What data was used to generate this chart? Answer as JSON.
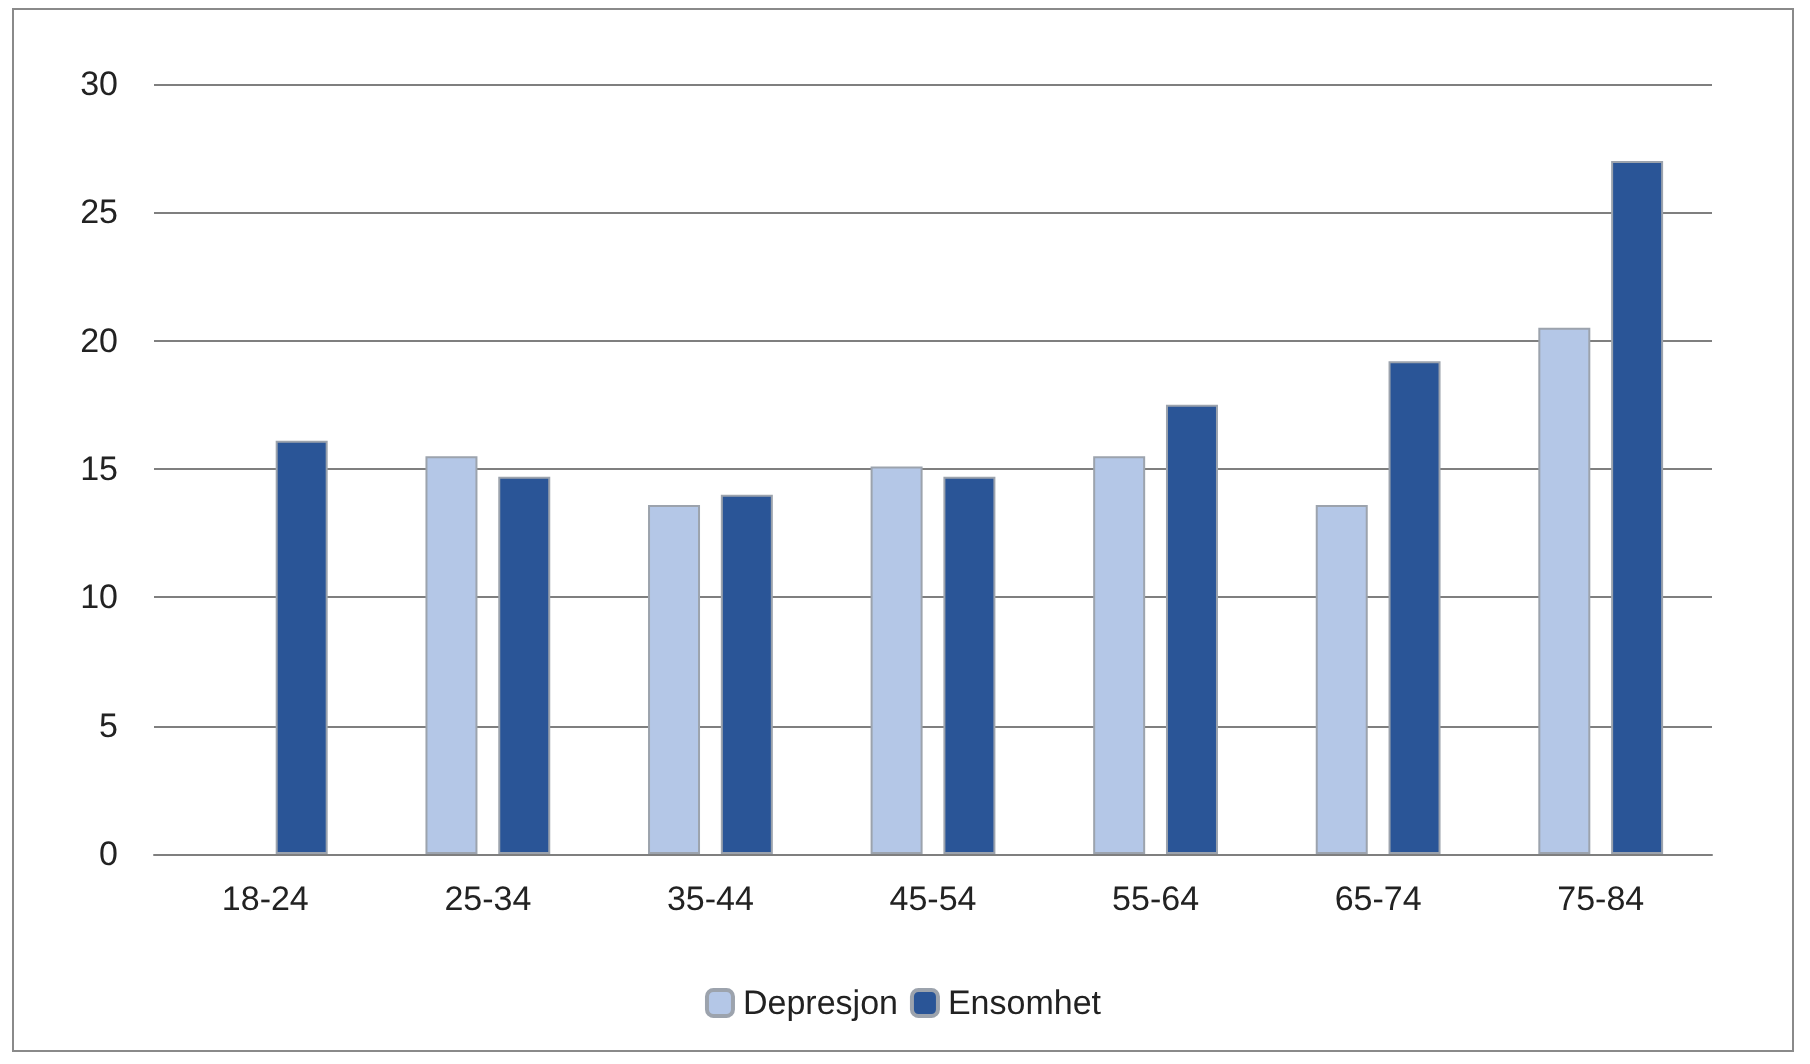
{
  "chart_data": {
    "type": "bar",
    "categories": [
      "18-24",
      "25-34",
      "35-44",
      "45-54",
      "55-64",
      "65-74",
      "75-84"
    ],
    "series": [
      {
        "name": "Depresjon",
        "color": "#b4c7e7",
        "values": [
          null,
          15.5,
          13.6,
          15.1,
          15.5,
          13.6,
          20.5
        ]
      },
      {
        "name": "Ensomhet",
        "color": "#2a5597",
        "values": [
          16.1,
          14.7,
          14.0,
          14.7,
          17.5,
          19.2,
          27.0
        ]
      }
    ],
    "ylim": [
      0,
      30
    ],
    "yticks": [
      0,
      5,
      10,
      15,
      20,
      25,
      30
    ],
    "grid": "y",
    "legend": "bottom"
  }
}
